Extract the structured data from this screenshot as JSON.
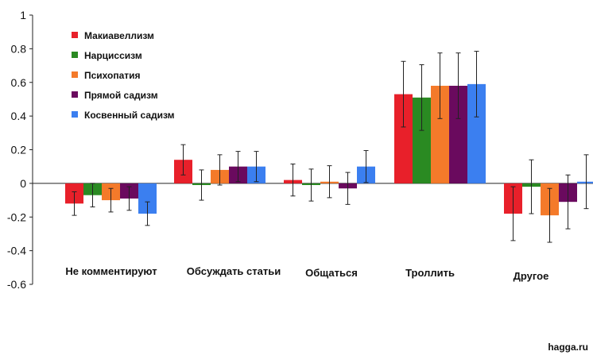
{
  "chart_data": {
    "type": "bar",
    "title": "",
    "xlabel": "",
    "ylabel": "",
    "ylim": [
      -0.6,
      1
    ],
    "yticks": [
      {
        "value": 1,
        "label": "1"
      },
      {
        "value": 0.8,
        "label": "0.8"
      },
      {
        "value": 0.6,
        "label": "0.6"
      },
      {
        "value": 0.4,
        "label": "0.4"
      },
      {
        "value": 0.2,
        "label": "0.2"
      },
      {
        "value": 0,
        "label": "0"
      },
      {
        "value": -0.2,
        "label": "-0.2"
      },
      {
        "value": -0.4,
        "label": "-0.4"
      },
      {
        "value": -0.6,
        "label": "-0.6"
      }
    ],
    "grid": false,
    "legend_position": "top-left",
    "categories": [
      "Не комментируют",
      "Обсуждать статьи",
      "Общаться",
      "Троллить",
      "Другое"
    ],
    "series": [
      {
        "name": "Макиавеллизм",
        "color": "#e8202a",
        "values": [
          -0.12,
          0.14,
          0.02,
          0.53,
          -0.18
        ],
        "errors": [
          0.07,
          0.09,
          0.095,
          0.195,
          0.16
        ]
      },
      {
        "name": "Нарциссизм",
        "color": "#2a8a22",
        "values": [
          -0.07,
          -0.01,
          -0.01,
          0.51,
          -0.02
        ],
        "errors": [
          0.07,
          0.09,
          0.095,
          0.195,
          0.16
        ]
      },
      {
        "name": "Психопатия",
        "color": "#f47a2a",
        "values": [
          -0.1,
          0.08,
          0.01,
          0.58,
          -0.19
        ],
        "errors": [
          0.07,
          0.09,
          0.095,
          0.195,
          0.16
        ]
      },
      {
        "name": "Прямой садизм",
        "color": "#6a0a5e",
        "values": [
          -0.09,
          0.1,
          -0.03,
          0.58,
          -0.11
        ],
        "errors": [
          0.07,
          0.09,
          0.095,
          0.195,
          0.16
        ]
      },
      {
        "name": "Косвенный садизм",
        "color": "#3b7ff0",
        "values": [
          -0.18,
          0.1,
          0.1,
          0.59,
          0.01
        ],
        "errors": [
          0.07,
          0.09,
          0.095,
          0.195,
          0.16
        ]
      }
    ]
  },
  "watermark": "hagga.ru"
}
